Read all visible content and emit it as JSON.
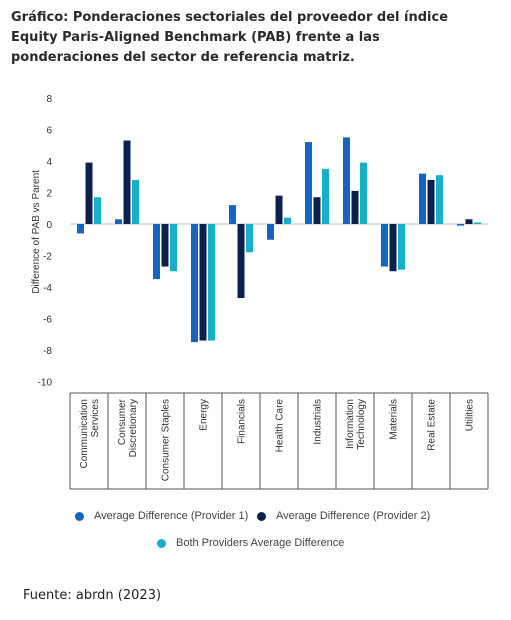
{
  "title": "Gráfico: Ponderaciones sectoriales del proveedor del índice Equity Paris-Aligned Benchmark (PAB) frente a las ponderaciones del sector de referencia matriz.",
  "source": "Fuente: abrdn (2023)",
  "chart_data": {
    "type": "bar",
    "ylabel": "Difference of PAB vs Parent",
    "ylim": [
      -10,
      8
    ],
    "yticks": [
      8,
      6,
      4,
      2,
      0,
      -2,
      -4,
      -6,
      -8,
      -10
    ],
    "grid": false,
    "legend_position": "bottom",
    "categories": [
      [
        "Communication",
        "Services"
      ],
      [
        "Consumer",
        "Discretionary"
      ],
      [
        "Consumer Staples"
      ],
      [
        "Energy"
      ],
      [
        "Financials"
      ],
      [
        "Health Care"
      ],
      [
        "Industrials"
      ],
      [
        "Information",
        "Technology"
      ],
      [
        "Materials"
      ],
      [
        "Real Estate"
      ],
      [
        "Utilities"
      ]
    ],
    "series": [
      {
        "name": "Average Difference (Provider 1)",
        "color": "#1565c0",
        "values": [
          -0.6,
          0.3,
          -3.5,
          -7.5,
          1.2,
          -1.0,
          5.2,
          5.5,
          -2.7,
          3.2,
          -0.1
        ]
      },
      {
        "name": "Average Difference (Provider 2)",
        "color": "#0c2050",
        "values": [
          3.9,
          5.3,
          -2.7,
          -7.4,
          -4.7,
          1.8,
          1.7,
          2.1,
          -3.0,
          2.8,
          0.3
        ]
      },
      {
        "name": "Both Providers Average Difference",
        "color": "#17b0c8",
        "values": [
          1.7,
          2.8,
          -3.0,
          -7.4,
          -1.8,
          0.4,
          3.5,
          3.9,
          -2.9,
          3.1,
          0.1
        ]
      }
    ]
  }
}
